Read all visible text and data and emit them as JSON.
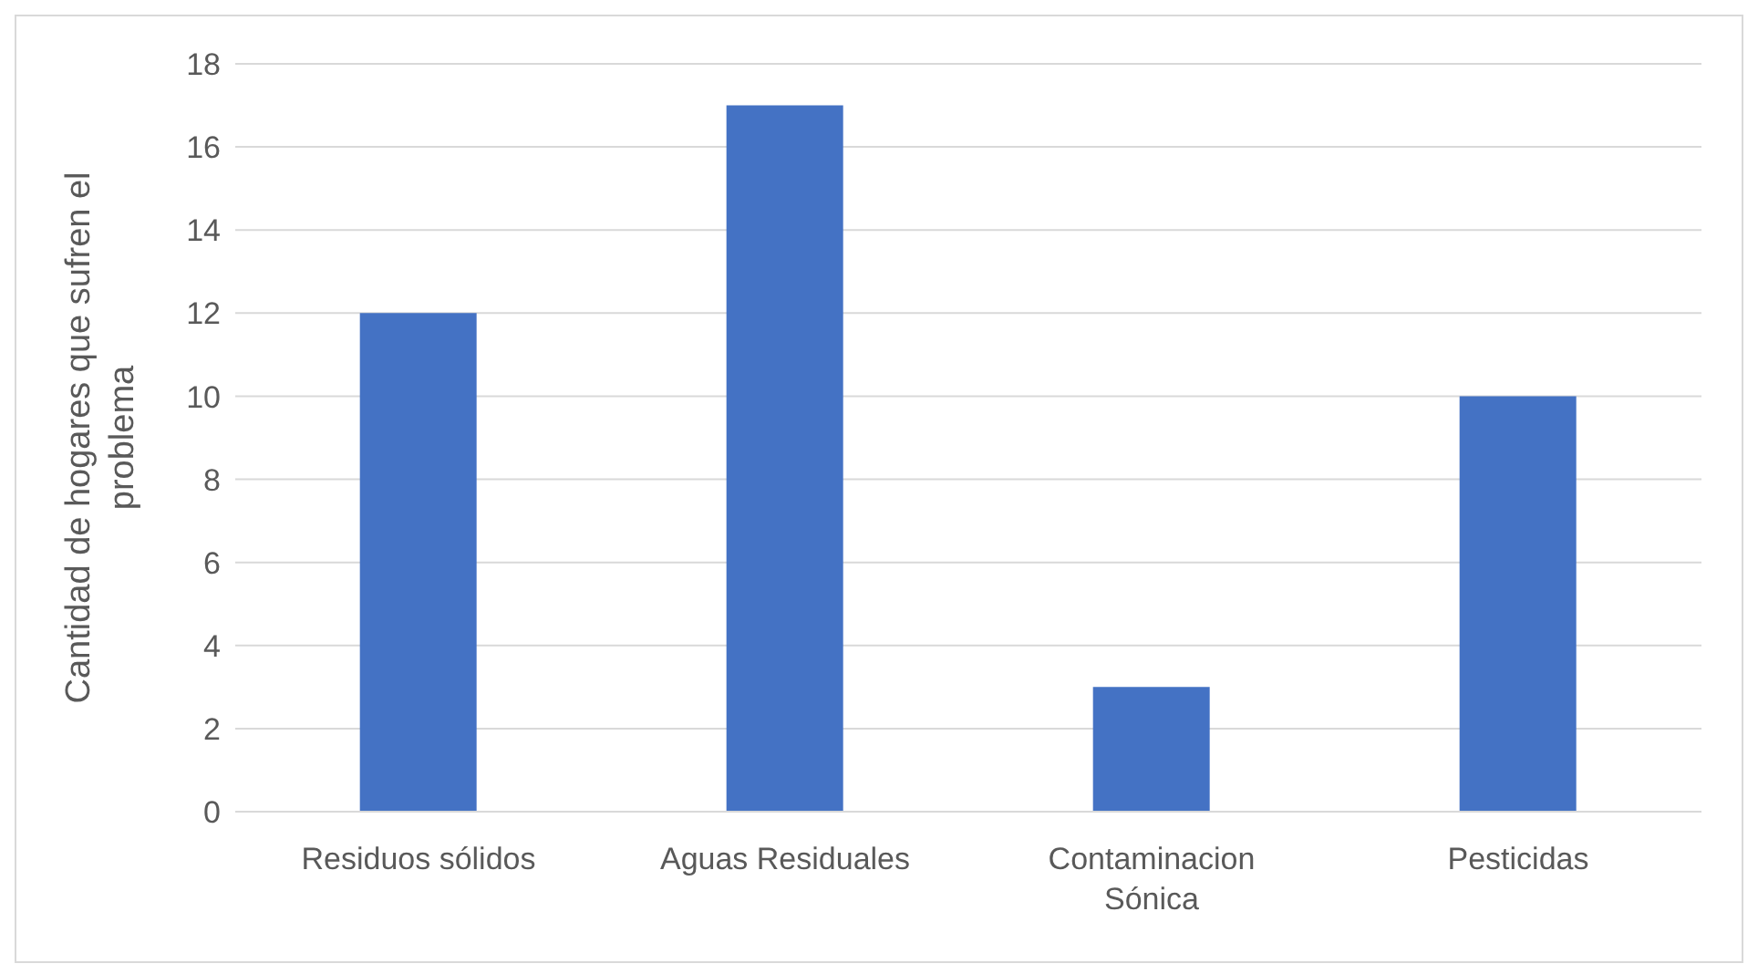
{
  "chart_data": {
    "type": "bar",
    "ylabel": "Cantidad de hogares que sufren el problema",
    "categories": [
      "Residuos sólidos",
      "Aguas Residuales",
      "Contaminacion Sónica",
      "Pesticidas"
    ],
    "values": [
      12,
      17,
      3,
      10
    ],
    "color": "#4472c4",
    "ylim": [
      0,
      18
    ],
    "yticks": [
      0,
      2,
      4,
      6,
      8,
      10,
      12,
      14,
      16,
      18
    ],
    "grid": "y"
  }
}
